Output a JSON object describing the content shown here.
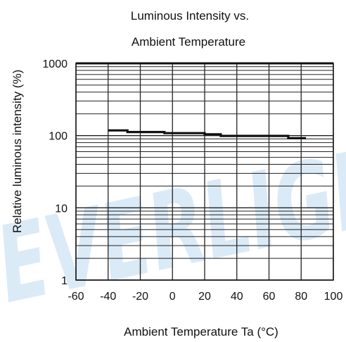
{
  "chart_data": {
    "type": "line",
    "title_line1": "Luminous Intensity vs.",
    "title_line2": "Ambient Temperature",
    "xlabel": "Ambient Temperature Ta (°C)",
    "ylabel": "Relative luminous intensity (%)",
    "xlim": [
      -60,
      100
    ],
    "ylim": [
      1,
      1000
    ],
    "yscale": "log",
    "grid": true,
    "x_ticks": [
      -60,
      -40,
      -20,
      0,
      20,
      40,
      60,
      80,
      100
    ],
    "x_tick_labels": [
      "-60",
      "-40",
      "-20",
      "0",
      "20",
      "40",
      "60",
      "80",
      "100"
    ],
    "y_ticks": [
      1,
      10,
      100,
      1000
    ],
    "y_tick_labels": [
      "1",
      "10",
      "100",
      "1000"
    ],
    "series": [
      {
        "x": [
          -40,
          -28,
          -28,
          -5,
          -5,
          20,
          20,
          30,
          30,
          72,
          72,
          83
        ],
        "y": [
          118,
          118,
          112,
          112,
          108,
          108,
          104,
          104,
          99,
          99,
          92,
          92
        ]
      }
    ],
    "watermark": "EVERLIGHT"
  }
}
